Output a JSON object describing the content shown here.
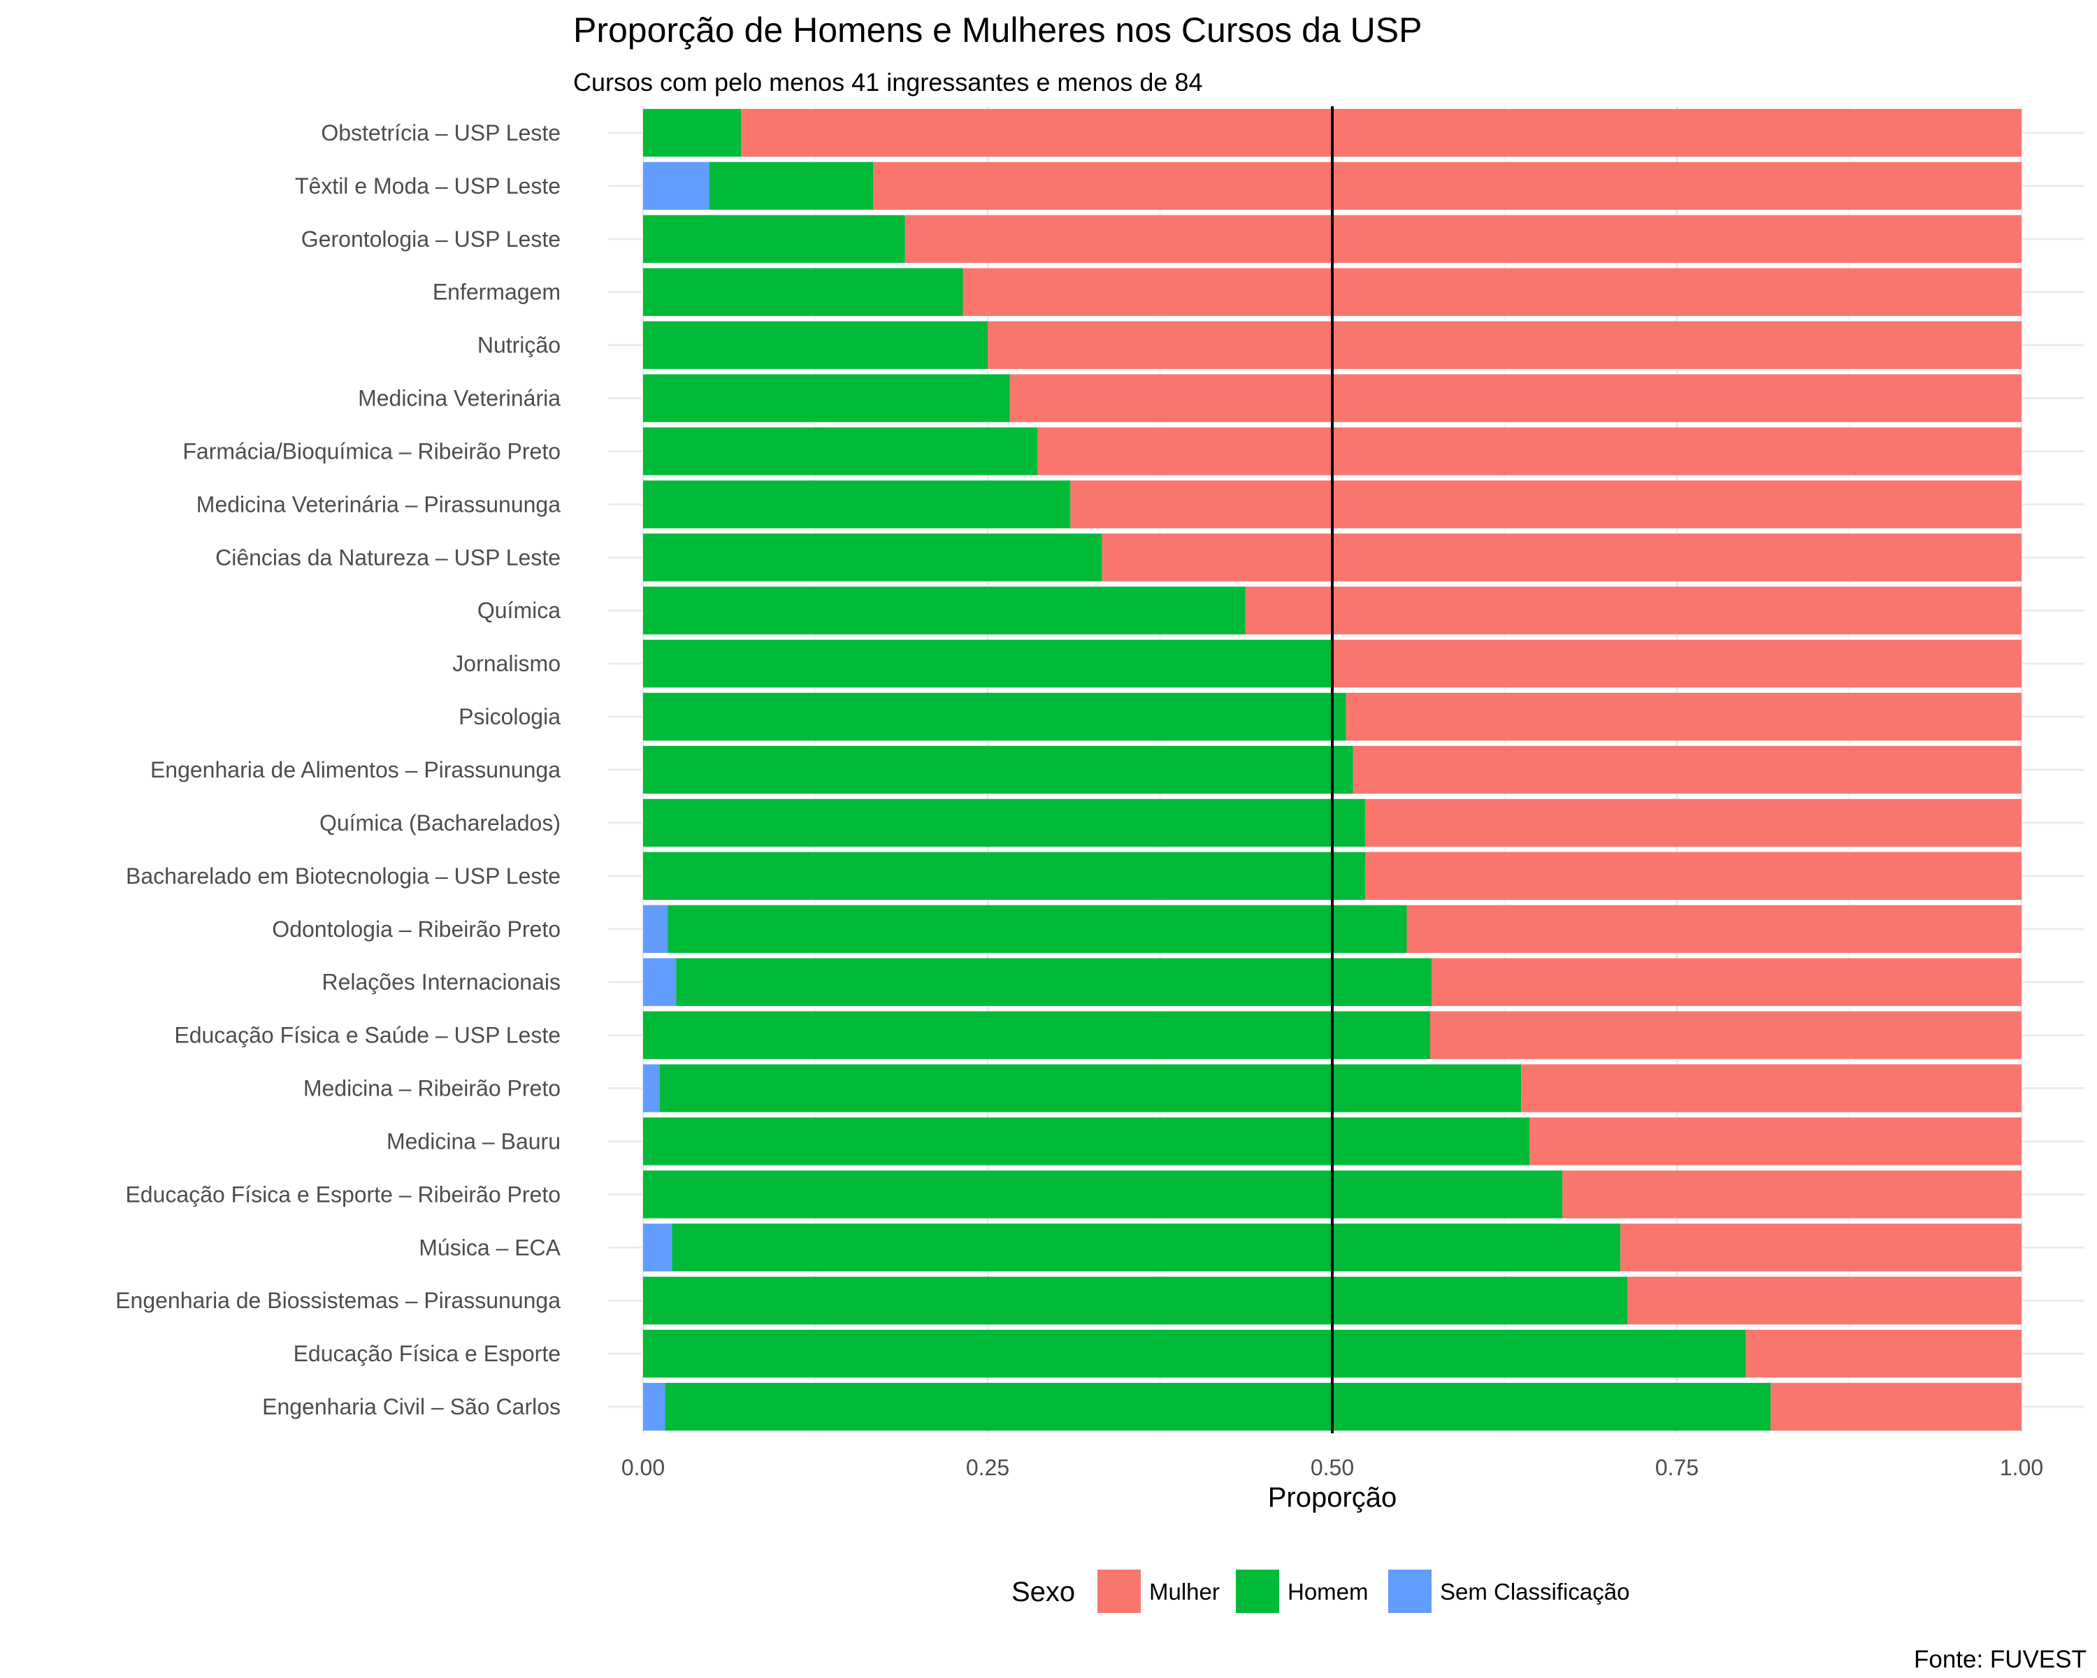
{
  "chart_data": {
    "type": "bar",
    "orientation": "horizontal",
    "stacked": true,
    "title": "Proporção de Homens e Mulheres nos Cursos da USP",
    "subtitle": "Cursos com pelo menos 41 ingressantes e menos de 84",
    "xlabel": "Proporção",
    "ylabel": "",
    "xlim": [
      0,
      1
    ],
    "xticks": [
      "0.00",
      "0.25",
      "0.50",
      "0.75",
      "1.00"
    ],
    "reference_line_x": 0.5,
    "grid": true,
    "legend_title": "Sexo",
    "legend_position": "bottom",
    "caption": "Fonte: FUVEST",
    "categories": [
      "Obstetrícia – USP Leste",
      "Têxtil e Moda – USP Leste",
      "Gerontologia – USP Leste",
      "Enfermagem",
      "Nutrição",
      "Medicina Veterinária",
      "Farmácia/Bioquímica – Ribeirão Preto",
      "Medicina Veterinária – Pirassununga",
      "Ciências da Natureza – USP Leste",
      "Química",
      "Jornalismo",
      "Psicologia",
      "Engenharia de Alimentos – Pirassununga",
      "Química (Bacharelados)",
      "Bacharelado em Biotecnologia – USP Leste",
      "Odontologia – Ribeirão Preto",
      "Relações Internacionais",
      "Educação Física e Saúde – USP Leste",
      "Medicina – Ribeirão Preto",
      "Medicina – Bauru",
      "Educação Física e Esporte – Ribeirão Preto",
      "Música – ECA",
      "Engenharia de Biossistemas – Pirassununga",
      "Educação Física e Esporte",
      "Engenharia Civil – São Carlos"
    ],
    "series": [
      {
        "name": "Sem Classificação",
        "color": "#619CFF",
        "values": [
          0,
          0.048,
          0,
          0,
          0,
          0,
          0,
          0,
          0,
          0,
          0,
          0,
          0,
          0,
          0,
          0.018,
          0.024,
          0,
          0.012,
          0,
          0,
          0.021,
          0,
          0,
          0.016
        ]
      },
      {
        "name": "Homem",
        "color": "#00BA38",
        "values": [
          0.071,
          0.119,
          0.19,
          0.232,
          0.25,
          0.266,
          0.286,
          0.31,
          0.333,
          0.437,
          0.5,
          0.51,
          0.515,
          0.524,
          0.524,
          0.536,
          0.548,
          0.571,
          0.625,
          0.643,
          0.667,
          0.688,
          0.714,
          0.8,
          0.802
        ]
      },
      {
        "name": "Mulher",
        "color": "#F8766D",
        "values": [
          0.929,
          0.833,
          0.81,
          0.768,
          0.75,
          0.734,
          0.714,
          0.69,
          0.667,
          0.563,
          0.5,
          0.49,
          0.485,
          0.476,
          0.476,
          0.446,
          0.428,
          0.429,
          0.363,
          0.357,
          0.333,
          0.291,
          0.286,
          0.2,
          0.182
        ]
      }
    ],
    "legend_order": [
      "Mulher",
      "Homem",
      "Sem Classificação"
    ]
  }
}
